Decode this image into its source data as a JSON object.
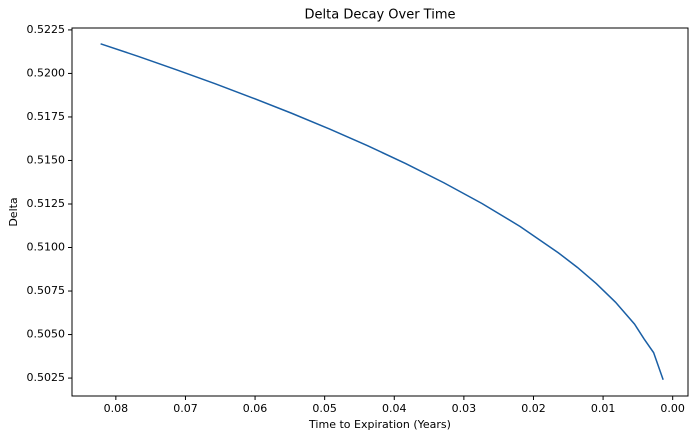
{
  "chart_data": {
    "type": "line",
    "title": "Delta Decay Over Time",
    "x_label": "Time to Expiration (Years)",
    "y_label": "Delta",
    "x": [
      0.08219,
      0.07671,
      0.07123,
      0.06575,
      0.06027,
      0.05479,
      0.04932,
      0.04384,
      0.03836,
      0.03288,
      0.0274,
      0.02192,
      0.01644,
      0.0137,
      0.01096,
      0.00822,
      0.00548,
      0.00411,
      0.00274,
      0.00137
    ],
    "series": [
      {
        "name": "Delta",
        "color": "#1a5fa5",
        "values": [
          0.5217,
          0.52097,
          0.5202,
          0.51941,
          0.51858,
          0.51772,
          0.51681,
          0.51585,
          0.51482,
          0.51372,
          0.51253,
          0.51121,
          0.5097,
          0.50886,
          0.50792,
          0.50686,
          0.5056,
          0.50475,
          0.50396,
          0.5024
        ]
      }
    ],
    "xlim": [
      0.0863,
      -0.0022
    ],
    "xticks": [
      0.08,
      0.07,
      0.06,
      0.05,
      0.04,
      0.03,
      0.02,
      0.01,
      {
        "value": 0,
        "label": "0.00"
      }
    ],
    "ylim": [
      0.50147,
      0.52261
    ],
    "yticks": [
      0.5025,
      {
        "value": 0.505,
        "label": "0.5050"
      },
      0.5075,
      {
        "value": 0.51,
        "label": "0.5100"
      },
      0.5125,
      {
        "value": 0.515,
        "label": "0.5150"
      },
      0.5175,
      {
        "value": 0.52,
        "label": "0.5200"
      },
      0.5225
    ],
    "grid": false
  }
}
